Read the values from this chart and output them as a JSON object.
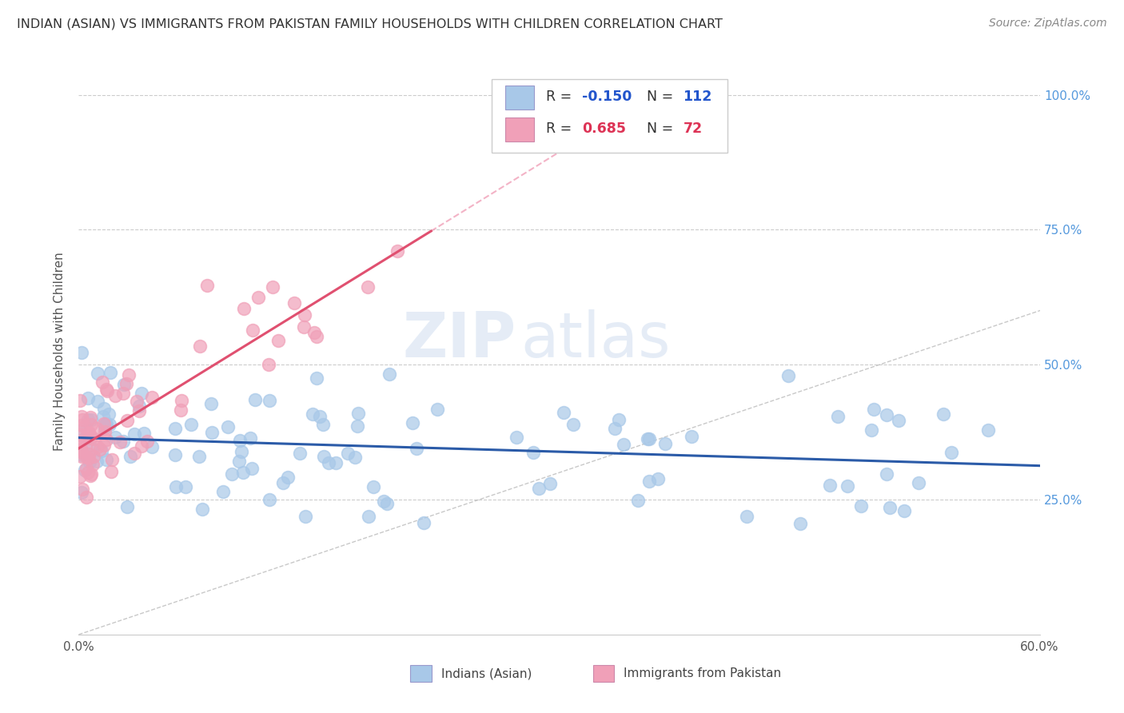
{
  "title": "INDIAN (ASIAN) VS IMMIGRANTS FROM PAKISTAN FAMILY HOUSEHOLDS WITH CHILDREN CORRELATION CHART",
  "source": "Source: ZipAtlas.com",
  "ylabel": "Family Households with Children",
  "xlim": [
    0.0,
    0.6
  ],
  "ylim": [
    0.0,
    1.05
  ],
  "watermark_zip": "ZIP",
  "watermark_atlas": "atlas",
  "blue_color": "#A8C8E8",
  "pink_color": "#F0A0B8",
  "blue_line_color": "#2B5BA8",
  "pink_line_color": "#E05070",
  "pink_line_dash_color": "#F0A0B8",
  "diag_line_color": "#BBBBBB",
  "grid_color": "#CCCCCC",
  "title_color": "#333333",
  "source_color": "#888888",
  "right_tick_color": "#5599DD",
  "legend_r_color1": "#2255CC",
  "legend_r_color2": "#DD3355",
  "legend_border_color": "#CCCCCC",
  "bottom_border_color": "#CCCCCC"
}
